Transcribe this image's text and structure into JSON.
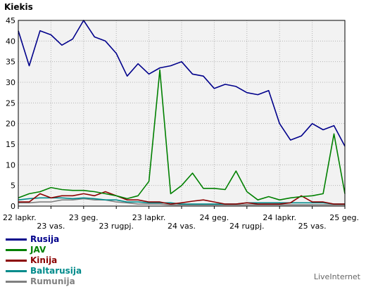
{
  "header": {
    "title": "Kiekis"
  },
  "credit": "LiveInternet",
  "chart_data": {
    "type": "line",
    "ylim": [
      0,
      45
    ],
    "yticks": [
      0,
      5,
      10,
      15,
      20,
      25,
      30,
      35,
      40,
      45
    ],
    "grid": true,
    "legend_position": "bottom-left",
    "x_tick_labels": [
      {
        "label": "22 lapkr.",
        "index": 0,
        "row": 1
      },
      {
        "label": "23 vas.",
        "index": 3,
        "row": 2
      },
      {
        "label": "23 geg.",
        "index": 6,
        "row": 1
      },
      {
        "label": "23 rugpj.",
        "index": 9,
        "row": 2
      },
      {
        "label": "23 lapkr.",
        "index": 12,
        "row": 1
      },
      {
        "label": "24 vas.",
        "index": 15,
        "row": 2
      },
      {
        "label": "24 geg.",
        "index": 18,
        "row": 1
      },
      {
        "label": "24 rugpj.",
        "index": 21,
        "row": 2
      },
      {
        "label": "24 lapkr.",
        "index": 24,
        "row": 1
      },
      {
        "label": "25 vas.",
        "index": 27,
        "row": 2
      },
      {
        "label": "25 geg.",
        "index": 30,
        "row": 1
      }
    ],
    "num_points": 31,
    "series": [
      {
        "name": "Rusija",
        "color": "#00008b",
        "values": [
          42.5,
          34,
          42.5,
          41.5,
          39,
          40.5,
          45,
          41,
          40,
          37,
          31.5,
          34.5,
          32,
          33.5,
          34,
          35,
          32,
          31.5,
          28.5,
          29.5,
          29,
          27.5,
          27,
          28,
          20,
          16,
          17,
          20,
          18.5,
          19.5,
          14.5
        ]
      },
      {
        "name": "JAV",
        "color": "#008000",
        "values": [
          2,
          3,
          3.5,
          4.5,
          4,
          3.8,
          3.8,
          3.5,
          3,
          2.5,
          1.8,
          2.5,
          6,
          33,
          3,
          5,
          8,
          4.3,
          4.3,
          4,
          8.5,
          3.5,
          1.5,
          2.3,
          1.5,
          2,
          2.3,
          2.5,
          3,
          17.5,
          3
        ]
      },
      {
        "name": "Kinija",
        "color": "#8b0000",
        "values": [
          1,
          1,
          3,
          2,
          2.5,
          2.5,
          3,
          2.5,
          3.5,
          2.5,
          1.5,
          1.5,
          1,
          1,
          0.5,
          0.8,
          1.2,
          1.5,
          1,
          0.5,
          0.5,
          0.8,
          0.5,
          0.5,
          0.5,
          0.8,
          2.5,
          1,
          1,
          0.5,
          0.5
        ]
      },
      {
        "name": "Baltarusija",
        "color": "#008b8b",
        "values": [
          1.5,
          1.8,
          2,
          2,
          2,
          1.8,
          2,
          1.8,
          1.5,
          1.5,
          1,
          1,
          0.8,
          0.8,
          0.8,
          0.5,
          0.5,
          0.5,
          0.5,
          0.5,
          0.5,
          0.8,
          0.8,
          0.8,
          0.8,
          0.8,
          0.8,
          0.8,
          0.8,
          0.5,
          0.5
        ]
      },
      {
        "name": "Rumunija",
        "color": "#808080",
        "values": [
          0.8,
          0.8,
          1,
          1,
          1.5,
          1.5,
          1.8,
          1.5,
          1.5,
          1,
          0.8,
          0.5,
          0.5,
          0.5,
          0.3,
          0.3,
          0.3,
          0.3,
          0.3,
          0.3,
          0.3,
          0.3,
          0.3,
          0.3,
          0.3,
          0.3,
          0.3,
          0.3,
          0.3,
          0.3,
          0.3
        ]
      }
    ]
  }
}
